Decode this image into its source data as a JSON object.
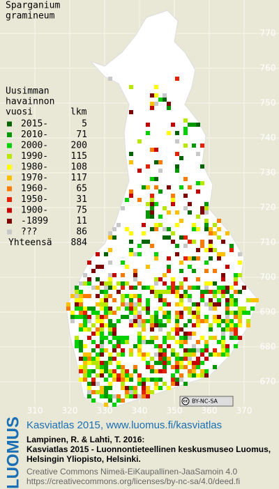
{
  "title": [
    "Sparganium",
    "gramineum"
  ],
  "legend": {
    "header": [
      "Uusimman",
      "havainnon",
      "vuosi"
    ],
    "count_header": "lkm",
    "entries": [
      {
        "label": "2015-",
        "count": "5",
        "color": "#006400"
      },
      {
        "label": "2010-",
        "count": "71",
        "color": "#009a00"
      },
      {
        "label": "2000-",
        "count": "200",
        "color": "#00d200"
      },
      {
        "label": "1990-",
        "count": "115",
        "color": "#b8e800"
      },
      {
        "label": "1980-",
        "count": "108",
        "color": "#ffff00"
      },
      {
        "label": "1970-",
        "count": "117",
        "color": "#ffc000"
      },
      {
        "label": "1960-",
        "count": "65",
        "color": "#ff7a00"
      },
      {
        "label": "1950-",
        "count": "31",
        "color": "#e82000"
      },
      {
        "label": "1900-",
        "count": "75",
        "color": "#c80000"
      },
      {
        "label": "-1899",
        "count": "11",
        "color": "#800000"
      },
      {
        "label": "???",
        "count": "86",
        "color": "#c8c8c8"
      }
    ],
    "total_label": "Yhteensä",
    "total": "884"
  },
  "x_ticks": [
    310,
    320,
    330,
    340,
    350,
    360,
    370
  ],
  "y_ticks": [
    670,
    680,
    690,
    700,
    710,
    720,
    730,
    740,
    750,
    760,
    770
  ],
  "cc_badge": [
    "cc",
    "BY-NC-SA"
  ],
  "footer": {
    "logo": "LUOMUS",
    "headline": "Kasviatlas 2015, www.luomus.fi/kasviatlas",
    "citation": [
      "Lampinen, R. & Lahti, T. 2016:",
      "Kasviatlas 2015 - Luonnontieteellinen keskusmuseo Luomus,",
      "Helsingin Yliopisto, Helsinki."
    ],
    "license": [
      "Creative Commons Nimeä-EiKaupallinen-JaaSamoin 4.0",
      "https://creativecommons.org/licenses/by-nc-sa/4.0/deed.fi"
    ]
  }
}
